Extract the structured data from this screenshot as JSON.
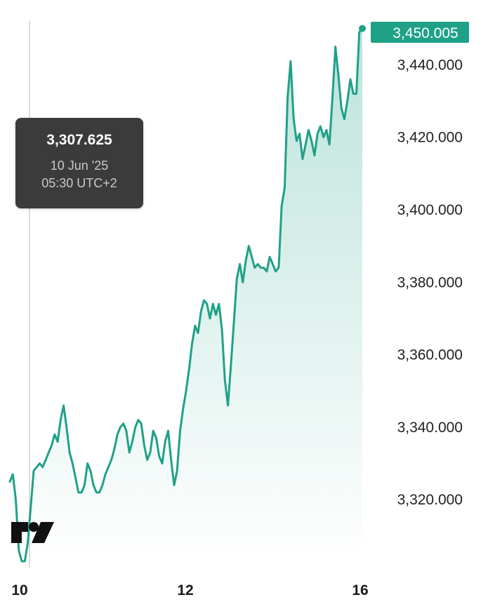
{
  "chart_data": {
    "type": "area",
    "x_ticks": [
      "10",
      "12",
      "16"
    ],
    "y_ticks": [
      "3,320.000",
      "3,340.000",
      "3,360.000",
      "3,380.000",
      "3,400.000",
      "3,420.000",
      "3,440.000"
    ],
    "ylim": [
      3303,
      3454
    ],
    "grid": false,
    "series": [
      {
        "values": [
          3325,
          3327,
          3320,
          3306,
          3303,
          3303,
          3308,
          3318,
          3328,
          3329,
          3330,
          3329,
          3331,
          3333,
          3335,
          3338,
          3336,
          3342,
          3346,
          3340,
          3333,
          3330,
          3326,
          3322,
          3322,
          3324,
          3330,
          3328,
          3324,
          3322,
          3322,
          3324,
          3327,
          3329,
          3331,
          3334,
          3338,
          3340,
          3341,
          3339,
          3333,
          3336,
          3340,
          3342,
          3341,
          3335,
          3331,
          3333,
          3339,
          3337,
          3332,
          3330,
          3336,
          3339,
          3331,
          3324,
          3328,
          3339,
          3345,
          3350,
          3356,
          3363,
          3368,
          3366,
          3372,
          3375,
          3374,
          3370,
          3374,
          3371,
          3374,
          3367,
          3353,
          3346,
          3357,
          3369,
          3381,
          3385,
          3380,
          3386,
          3390,
          3387,
          3384,
          3385,
          3384,
          3384,
          3383,
          3387,
          3385,
          3383,
          3384,
          3401,
          3406,
          3431,
          3441,
          3425,
          3419,
          3421,
          3414,
          3418,
          3422,
          3419,
          3415,
          3421,
          3423,
          3420,
          3422,
          3418,
          3431,
          3445,
          3437,
          3428,
          3425,
          3430,
          3436,
          3432,
          3432,
          3449,
          3450.005
        ]
      }
    ],
    "cursor": {
      "value": "3,307.625",
      "date": "10 Jun '25",
      "time": "05:30 UTC+2"
    },
    "last_price": "3,450.005",
    "colors": {
      "line": "#1fa187",
      "fill": "#1fa187",
      "badge": "#1fa187",
      "tooltip_bg": "#3b3b3b",
      "crosshair": "#dcdcdc"
    }
  },
  "logo": {
    "icon": "tradingview-logo-icon"
  }
}
